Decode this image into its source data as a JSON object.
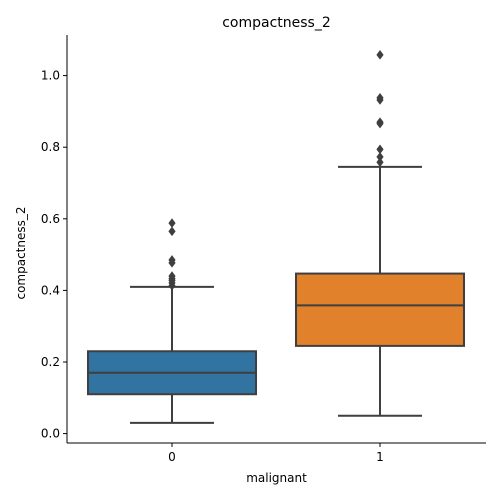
{
  "chart_data": {
    "type": "box",
    "title": "compactness_2",
    "xlabel": "malignant",
    "ylabel": "compactness_2",
    "categories": [
      "0",
      "1"
    ],
    "ylim": [
      -0.02,
      1.11
    ],
    "yticks": [
      0.0,
      0.2,
      0.4,
      0.6,
      0.8,
      1.0
    ],
    "ytick_labels": [
      "0.0",
      "0.2",
      "0.4",
      "0.6",
      "0.8",
      "1.0"
    ],
    "grid": false,
    "boxes": [
      {
        "category": "0",
        "whisker_low": 0.03,
        "q1": 0.11,
        "median": 0.17,
        "q3": 0.23,
        "whisker_high": 0.41,
        "outliers": [
          0.413,
          0.421,
          0.428,
          0.433,
          0.44,
          0.477,
          0.485,
          0.565,
          0.588
        ],
        "color": "#3274a1"
      },
      {
        "category": "1",
        "whisker_low": 0.05,
        "q1": 0.245,
        "median": 0.358,
        "q3": 0.447,
        "whisker_high": 0.745,
        "outliers": [
          0.758,
          0.773,
          0.794,
          0.866,
          0.87,
          0.932,
          0.938,
          1.058
        ],
        "color": "#e1812c"
      }
    ],
    "line_color": "#3f3f3f"
  }
}
